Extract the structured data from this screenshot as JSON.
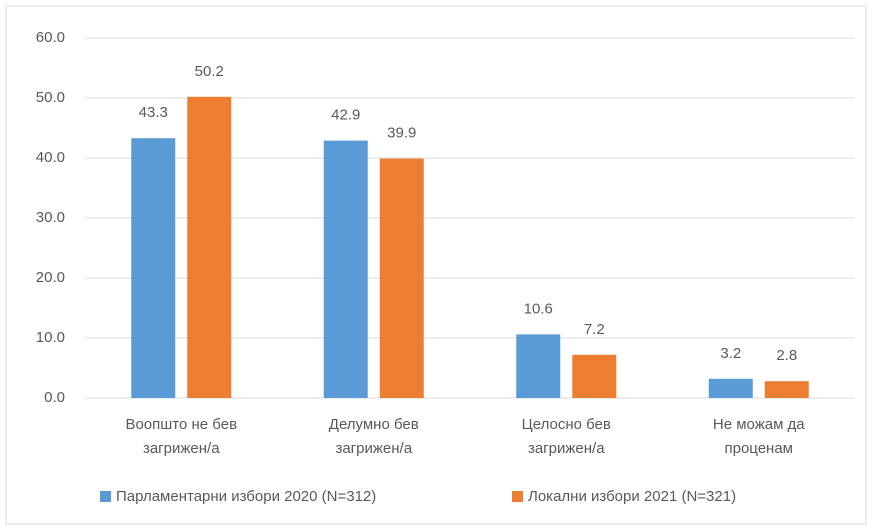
{
  "chart_data": {
    "type": "bar",
    "categories": [
      [
        "Воопшто не бев",
        "загрижен/а"
      ],
      [
        "Делумно бев",
        "загрижен/а"
      ],
      [
        "Целосно бев",
        "загрижен/а"
      ],
      [
        "Не можам да",
        "проценам"
      ]
    ],
    "series": [
      {
        "name": "Парламентарни избори 2020 (N=312)",
        "color": "#5b9bd5",
        "values": [
          43.3,
          42.9,
          10.6,
          3.2
        ]
      },
      {
        "name": "Локални избори 2021 (N=321)",
        "color": "#ed7d31",
        "values": [
          50.2,
          39.9,
          7.2,
          2.8
        ]
      }
    ],
    "ylim": [
      0,
      60
    ],
    "yticks": [
      {
        "value": 0,
        "label": "0.0"
      },
      {
        "value": 10,
        "label": "10.0"
      },
      {
        "value": 20,
        "label": "20.0"
      },
      {
        "value": 30,
        "label": "30.0"
      },
      {
        "value": 40,
        "label": "40.0"
      },
      {
        "value": 50,
        "label": "50.0"
      },
      {
        "value": 60,
        "label": "60.0"
      }
    ],
    "grid": true,
    "legend": "bottom"
  }
}
